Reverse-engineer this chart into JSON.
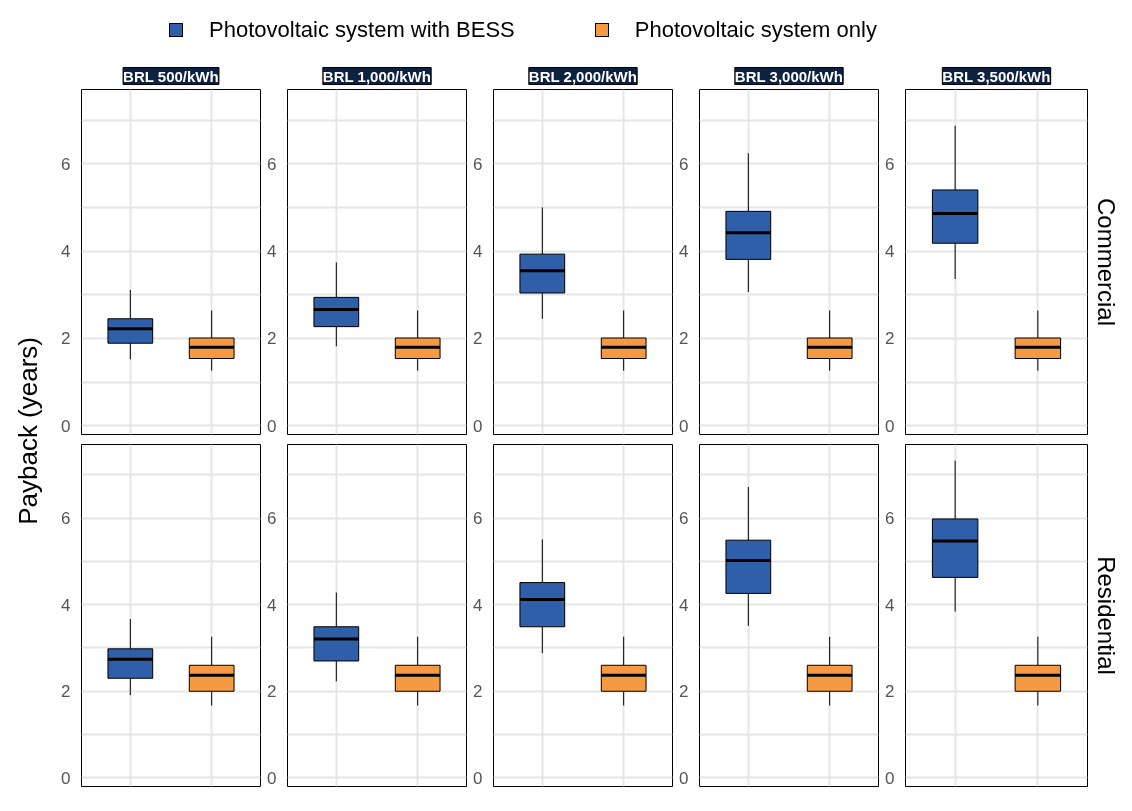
{
  "chart_data": [
    {
      "type": "box",
      "title": "BRL 500/kWh",
      "ylabel": "Payback (years)",
      "legend": "top",
      "grid": true,
      "categories": [
        null,
        null
      ],
      "ylim": [
        -0.2,
        7.7
      ],
      "yticks": [
        0,
        {
          "value": 1,
          "label": null
        },
        2,
        {
          "value": 3,
          "label": null
        },
        4,
        {
          "value": 5,
          "label": null
        },
        6,
        {
          "value": 7,
          "label": null
        }
      ],
      "series": [
        {
          "name": "Photovoltaic system with BESS",
          "color": "#2e5fa8",
          "boxes": [
            {
              "low": 1.52,
              "q1": 1.89,
              "median": 2.22,
              "q3": 2.45,
              "high": 3.11
            },
            null
          ]
        },
        {
          "name": "Photovoltaic system only",
          "color": "#f59a42",
          "boxes": [
            null,
            {
              "low": 1.26,
              "q1": 1.54,
              "median": 1.8,
              "q3": 2.01,
              "high": 2.64
            }
          ]
        }
      ]
    },
    {
      "type": "box",
      "title": "BRL 1,000/kWh",
      "grid": true,
      "categories": [
        null,
        null
      ],
      "ylim": [
        -0.2,
        7.7
      ],
      "yticks": [
        0,
        {
          "value": 1,
          "label": null
        },
        2,
        {
          "value": 3,
          "label": null
        },
        4,
        {
          "value": 5,
          "label": null
        },
        6,
        {
          "value": 7,
          "label": null
        }
      ],
      "series": [
        {
          "color": "#2e5fa8",
          "boxes": [
            {
              "low": 1.82,
              "q1": 2.27,
              "median": 2.66,
              "q3": 2.94,
              "high": 3.74
            },
            null
          ]
        },
        {
          "color": "#f59a42",
          "boxes": [
            null,
            {
              "low": 1.26,
              "q1": 1.54,
              "median": 1.8,
              "q3": 2.01,
              "high": 2.64
            }
          ]
        }
      ]
    },
    {
      "type": "box",
      "title": "BRL 2,000/kWh",
      "grid": true,
      "categories": [
        null,
        null
      ],
      "ylim": [
        -0.2,
        7.7
      ],
      "yticks": [
        0,
        {
          "value": 1,
          "label": null
        },
        2,
        {
          "value": 3,
          "label": null
        },
        4,
        {
          "value": 5,
          "label": null
        },
        6,
        {
          "value": 7,
          "label": null
        }
      ],
      "series": [
        {
          "color": "#2e5fa8",
          "boxes": [
            {
              "low": 2.45,
              "q1": 3.04,
              "median": 3.55,
              "q3": 3.93,
              "high": 5.0
            },
            null
          ]
        },
        {
          "color": "#f59a42",
          "boxes": [
            null,
            {
              "low": 1.26,
              "q1": 1.54,
              "median": 1.8,
              "q3": 2.01,
              "high": 2.64
            }
          ]
        }
      ]
    },
    {
      "type": "box",
      "title": "BRL 3,000/kWh",
      "grid": true,
      "categories": [
        null,
        null
      ],
      "ylim": [
        -0.2,
        7.7
      ],
      "yticks": [
        0,
        {
          "value": 1,
          "label": null
        },
        2,
        {
          "value": 3,
          "label": null
        },
        4,
        {
          "value": 5,
          "label": null
        },
        6,
        {
          "value": 7,
          "label": null
        }
      ],
      "series": [
        {
          "color": "#2e5fa8",
          "boxes": [
            {
              "low": 3.06,
              "q1": 3.81,
              "median": 4.42,
              "q3": 4.91,
              "high": 6.24
            },
            null
          ]
        },
        {
          "color": "#f59a42",
          "boxes": [
            null,
            {
              "low": 1.26,
              "q1": 1.54,
              "median": 1.8,
              "q3": 2.01,
              "high": 2.64
            }
          ]
        }
      ]
    },
    {
      "type": "box",
      "title": "BRL 3,500/kWh",
      "annotations": [
        "Commercial"
      ],
      "grid": true,
      "categories": [
        null,
        null
      ],
      "ylim": [
        -0.2,
        7.7
      ],
      "yticks": [
        0,
        {
          "value": 1,
          "label": null
        },
        2,
        {
          "value": 3,
          "label": null
        },
        4,
        {
          "value": 5,
          "label": null
        },
        6,
        {
          "value": 7,
          "label": null
        }
      ],
      "series": [
        {
          "color": "#2e5fa8",
          "boxes": [
            {
              "low": 3.36,
              "q1": 4.18,
              "median": 4.86,
              "q3": 5.4,
              "high": 6.87
            },
            null
          ]
        },
        {
          "color": "#f59a42",
          "boxes": [
            null,
            {
              "low": 1.26,
              "q1": 1.54,
              "median": 1.8,
              "q3": 2.01,
              "high": 2.64
            }
          ]
        }
      ]
    },
    {
      "type": "box",
      "grid": true,
      "categories": [
        null,
        null
      ],
      "ylim": [
        -0.2,
        7.7
      ],
      "yticks": [
        0,
        {
          "value": 1,
          "label": null
        },
        2,
        {
          "value": 3,
          "label": null
        },
        4,
        {
          "value": 5,
          "label": null
        },
        6,
        {
          "value": 7,
          "label": null
        }
      ],
      "series": [
        {
          "color": "#2e5fa8",
          "boxes": [
            {
              "low": 1.91,
              "q1": 2.3,
              "median": 2.74,
              "q3": 2.98,
              "high": 3.67
            },
            null
          ]
        },
        {
          "color": "#f59a42",
          "boxes": [
            null,
            {
              "low": 1.67,
              "q1": 2.0,
              "median": 2.37,
              "q3": 2.6,
              "high": 3.26
            }
          ]
        }
      ]
    },
    {
      "type": "box",
      "grid": true,
      "categories": [
        null,
        null
      ],
      "ylim": [
        -0.2,
        7.7
      ],
      "yticks": [
        0,
        {
          "value": 1,
          "label": null
        },
        2,
        {
          "value": 3,
          "label": null
        },
        4,
        {
          "value": 5,
          "label": null
        },
        6,
        {
          "value": 7,
          "label": null
        }
      ],
      "series": [
        {
          "color": "#2e5fa8",
          "boxes": [
            {
              "low": 2.23,
              "q1": 2.7,
              "median": 3.21,
              "q3": 3.49,
              "high": 4.28
            },
            null
          ]
        },
        {
          "color": "#f59a42",
          "boxes": [
            null,
            {
              "low": 1.67,
              "q1": 2.0,
              "median": 2.37,
              "q3": 2.6,
              "high": 3.26
            }
          ]
        }
      ]
    },
    {
      "type": "box",
      "grid": true,
      "categories": [
        null,
        null
      ],
      "ylim": [
        -0.2,
        7.7
      ],
      "yticks": [
        0,
        {
          "value": 1,
          "label": null
        },
        2,
        {
          "value": 3,
          "label": null
        },
        4,
        {
          "value": 5,
          "label": null
        },
        6,
        {
          "value": 7,
          "label": null
        }
      ],
      "series": [
        {
          "color": "#2e5fa8",
          "boxes": [
            {
              "low": 2.88,
              "q1": 3.49,
              "median": 4.12,
              "q3": 4.51,
              "high": 5.51
            },
            null
          ]
        },
        {
          "color": "#f59a42",
          "boxes": [
            null,
            {
              "low": 1.67,
              "q1": 2.0,
              "median": 2.37,
              "q3": 2.6,
              "high": 3.26
            }
          ]
        }
      ]
    },
    {
      "type": "box",
      "grid": true,
      "categories": [
        null,
        null
      ],
      "ylim": [
        -0.2,
        7.7
      ],
      "yticks": [
        0,
        {
          "value": 1,
          "label": null
        },
        2,
        {
          "value": 3,
          "label": null
        },
        4,
        {
          "value": 5,
          "label": null
        },
        6,
        {
          "value": 7,
          "label": null
        }
      ],
      "series": [
        {
          "color": "#2e5fa8",
          "boxes": [
            {
              "low": 3.51,
              "q1": 4.26,
              "median": 5.02,
              "q3": 5.49,
              "high": 6.72
            },
            null
          ]
        },
        {
          "color": "#f59a42",
          "boxes": [
            null,
            {
              "low": 1.67,
              "q1": 2.0,
              "median": 2.37,
              "q3": 2.6,
              "high": 3.26
            }
          ]
        }
      ]
    },
    {
      "type": "box",
      "annotations": [
        "Residential"
      ],
      "grid": true,
      "categories": [
        null,
        null
      ],
      "ylim": [
        -0.2,
        7.7
      ],
      "yticks": [
        0,
        {
          "value": 1,
          "label": null
        },
        2,
        {
          "value": 3,
          "label": null
        },
        4,
        {
          "value": 5,
          "label": null
        },
        6,
        {
          "value": 7,
          "label": null
        }
      ],
      "series": [
        {
          "color": "#2e5fa8",
          "boxes": [
            {
              "low": 3.84,
              "q1": 4.63,
              "median": 5.47,
              "q3": 5.98,
              "high": 7.33
            },
            null
          ]
        },
        {
          "color": "#f59a42",
          "boxes": [
            null,
            {
              "low": 1.67,
              "q1": 2.0,
              "median": 2.37,
              "q3": 2.6,
              "high": 3.26
            }
          ]
        }
      ]
    }
  ]
}
